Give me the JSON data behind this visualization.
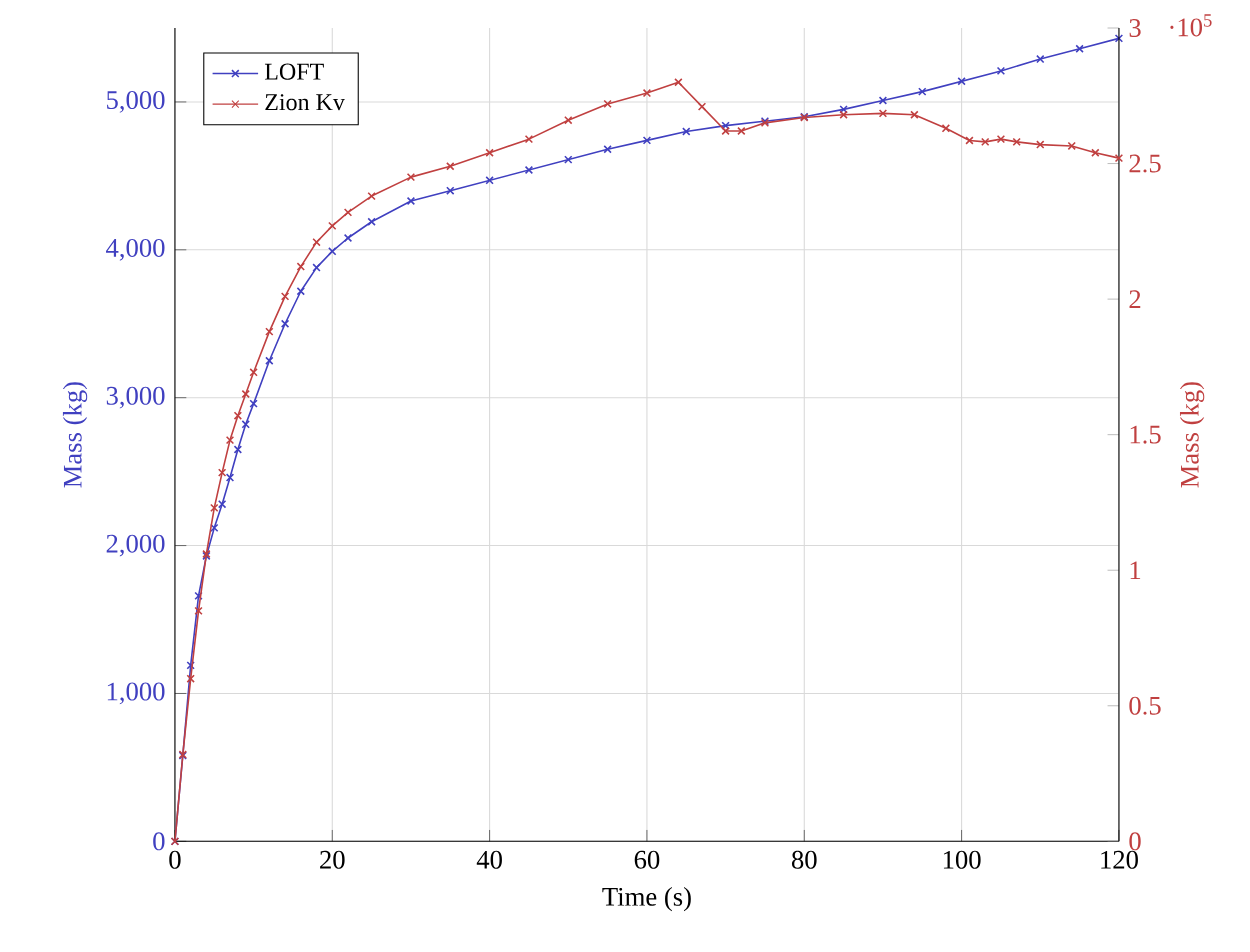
{
  "chart_data": {
    "type": "line",
    "xlabel": "Time (s)",
    "ylabel": "Mass (kg)",
    "y2label": "Mass (kg)",
    "xlim": [
      0,
      120
    ],
    "xticks": [
      0,
      20,
      40,
      60,
      80,
      100,
      120
    ],
    "ylim": [
      0,
      5500
    ],
    "yticks": [
      0,
      {
        "value": 1000,
        "label": "1,000"
      },
      {
        "value": 2000,
        "label": "2,000"
      },
      {
        "value": 3000,
        "label": "3,000"
      },
      {
        "value": 4000,
        "label": "4,000"
      },
      {
        "value": 5000,
        "label": "5,000"
      }
    ],
    "y2lim": [
      0,
      3
    ],
    "y2ticks": [
      0,
      0.5,
      1,
      1.5,
      2,
      2.5,
      3
    ],
    "annotations": [
      "·10$^{5}$"
    ],
    "grid": true,
    "legend": "top left",
    "marker": "cross",
    "line_style": "solid",
    "series": [
      {
        "name": "LOFT",
        "color": "#4040c0",
        "axis": "y",
        "x": [
          0,
          1,
          2,
          3,
          4,
          5,
          6,
          7,
          8,
          9,
          10,
          12,
          14,
          16,
          18,
          20,
          22,
          25,
          30,
          35,
          40,
          45,
          50,
          55,
          60,
          65,
          70,
          75,
          80,
          85,
          90,
          95,
          100,
          105,
          110,
          115,
          120
        ],
        "values": [
          0,
          580,
          1190,
          1660,
          1930,
          2120,
          2280,
          2460,
          2650,
          2820,
          2960,
          3250,
          3500,
          3720,
          3880,
          3990,
          4080,
          4190,
          4330,
          4400,
          4470,
          4540,
          4610,
          4680,
          4740,
          4800,
          4840,
          4870,
          4900,
          4950,
          5010,
          5070,
          5140,
          5210,
          5290,
          5360,
          5430
        ]
      },
      {
        "name": "Zion Kv",
        "color": "#c04040",
        "axis": "y2",
        "x": [
          0,
          1,
          2,
          3,
          4,
          5,
          6,
          7,
          8,
          9,
          10,
          12,
          14,
          16,
          18,
          20,
          22,
          25,
          30,
          35,
          40,
          45,
          50,
          55,
          60,
          64,
          67,
          70,
          72,
          75,
          80,
          85,
          90,
          94,
          98,
          101,
          103,
          105,
          107,
          110,
          114,
          117,
          120
        ],
        "values": [
          0,
          0.32,
          0.6,
          0.85,
          1.06,
          1.23,
          1.36,
          1.48,
          1.57,
          1.65,
          1.73,
          1.88,
          2.01,
          2.12,
          2.21,
          2.27,
          2.32,
          2.38,
          2.45,
          2.49,
          2.54,
          2.59,
          2.66,
          2.72,
          2.76,
          2.8,
          2.71,
          2.62,
          2.62,
          2.65,
          2.67,
          2.68,
          2.685,
          2.68,
          2.63,
          2.585,
          2.58,
          2.59,
          2.58,
          2.57,
          2.565,
          2.54,
          2.52
        ]
      }
    ]
  }
}
